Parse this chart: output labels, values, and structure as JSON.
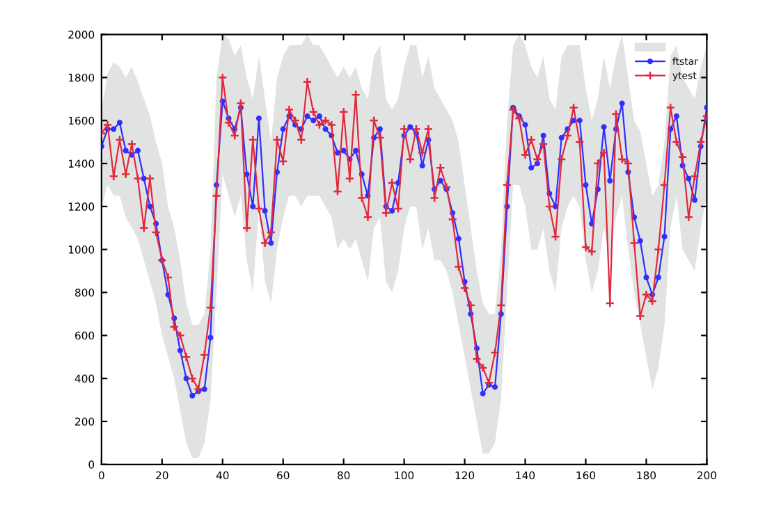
{
  "chart_data": {
    "type": "line",
    "x": [
      0,
      2,
      4,
      6,
      8,
      10,
      12,
      14,
      16,
      18,
      20,
      22,
      24,
      26,
      28,
      30,
      32,
      34,
      36,
      38,
      40,
      42,
      44,
      46,
      48,
      50,
      52,
      54,
      56,
      58,
      60,
      62,
      64,
      66,
      68,
      70,
      72,
      74,
      76,
      78,
      80,
      82,
      84,
      86,
      88,
      90,
      92,
      94,
      96,
      98,
      100,
      102,
      104,
      106,
      108,
      110,
      112,
      114,
      116,
      118,
      120,
      122,
      124,
      126,
      128,
      130,
      132,
      134,
      136,
      138,
      140,
      142,
      144,
      146,
      148,
      150,
      152,
      154,
      156,
      158,
      160,
      162,
      164,
      166,
      168,
      170,
      172,
      174,
      176,
      178,
      180,
      182,
      184,
      186,
      188,
      190,
      192,
      194,
      196,
      198,
      200
    ],
    "series": [
      {
        "name": "ftstar",
        "color": "#2f2fff",
        "marker": "circle",
        "values": [
          1480,
          1560,
          1560,
          1590,
          1460,
          1440,
          1460,
          1330,
          1200,
          1120,
          950,
          790,
          680,
          530,
          400,
          320,
          340,
          350,
          590,
          1300,
          1690,
          1610,
          1560,
          1660,
          1350,
          1200,
          1610,
          1180,
          1030,
          1360,
          1560,
          1620,
          1580,
          1560,
          1620,
          1600,
          1620,
          1560,
          1530,
          1450,
          1460,
          1420,
          1460,
          1350,
          1250,
          1520,
          1560,
          1200,
          1180,
          1310,
          1530,
          1570,
          1540,
          1390,
          1510,
          1280,
          1320,
          1280,
          1170,
          1050,
          850,
          700,
          540,
          330,
          370,
          360,
          700,
          1200,
          1660,
          1620,
          1580,
          1380,
          1400,
          1530,
          1260,
          1200,
          1520,
          1560,
          1600,
          1600,
          1300,
          1120,
          1280,
          1570,
          1320,
          1560,
          1680,
          1360,
          1150,
          1040,
          870,
          790,
          870,
          1060,
          1560,
          1620,
          1390,
          1330,
          1230,
          1480,
          1660
        ],
        "lower": [
          1200,
          1300,
          1250,
          1250,
          1150,
          1100,
          1050,
          950,
          850,
          750,
          600,
          500,
          400,
          250,
          100,
          30,
          30,
          100,
          300,
          800,
          1350,
          1250,
          1150,
          1250,
          950,
          800,
          1200,
          850,
          750,
          1000,
          1150,
          1250,
          1250,
          1200,
          1250,
          1250,
          1250,
          1200,
          1150,
          1000,
          1050,
          1000,
          1050,
          950,
          850,
          1100,
          1150,
          850,
          800,
          900,
          1100,
          1200,
          1200,
          1000,
          1100,
          950,
          950,
          900,
          800,
          650,
          500,
          350,
          200,
          50,
          50,
          100,
          300,
          800,
          1300,
          1300,
          1200,
          1000,
          1000,
          1100,
          900,
          800,
          1100,
          1200,
          1250,
          1200,
          950,
          800,
          900,
          1100,
          950,
          1150,
          1250,
          1000,
          800,
          650,
          500,
          350,
          450,
          650,
          1100,
          1250,
          1000,
          950,
          900,
          1100,
          1250
        ],
        "upper": [
          1650,
          1820,
          1870,
          1850,
          1800,
          1850,
          1780,
          1700,
          1620,
          1500,
          1400,
          1200,
          1100,
          950,
          750,
          650,
          650,
          700,
          1000,
          1800,
          2000,
          1980,
          1900,
          1950,
          1800,
          1700,
          1900,
          1700,
          1500,
          1800,
          1900,
          1950,
          1950,
          1950,
          2000,
          1950,
          1950,
          1900,
          1850,
          1800,
          1850,
          1800,
          1850,
          1750,
          1700,
          1900,
          1950,
          1700,
          1650,
          1700,
          1850,
          1950,
          1950,
          1800,
          1900,
          1750,
          1700,
          1650,
          1600,
          1500,
          1300,
          1100,
          900,
          750,
          700,
          700,
          1000,
          1600,
          1950,
          2000,
          1950,
          1850,
          1800,
          1900,
          1700,
          1650,
          1900,
          1950,
          1950,
          1950,
          1750,
          1600,
          1700,
          1900,
          1750,
          1900,
          2000,
          1800,
          1600,
          1550,
          1400,
          1250,
          1300,
          1500,
          1900,
          1950,
          1800,
          1750,
          1700,
          1850,
          1950
        ]
      },
      {
        "name": "ytest",
        "color": "#e2283c",
        "marker": "cross",
        "values": [
          1540,
          1580,
          1340,
          1510,
          1350,
          1490,
          1330,
          1100,
          1330,
          1080,
          950,
          870,
          640,
          600,
          500,
          400,
          350,
          510,
          730,
          1250,
          1800,
          1590,
          1530,
          1680,
          1100,
          1510,
          1190,
          1030,
          1080,
          1510,
          1410,
          1650,
          1600,
          1510,
          1780,
          1640,
          1580,
          1600,
          1580,
          1270,
          1640,
          1330,
          1720,
          1240,
          1150,
          1600,
          1520,
          1170,
          1310,
          1190,
          1560,
          1420,
          1560,
          1450,
          1560,
          1240,
          1380,
          1290,
          1140,
          920,
          820,
          740,
          490,
          450,
          380,
          520,
          740,
          1300,
          1650,
          1610,
          1440,
          1510,
          1420,
          1490,
          1200,
          1060,
          1420,
          1530,
          1660,
          1500,
          1010,
          990,
          1400,
          1450,
          750,
          1630,
          1420,
          1400,
          1030,
          690,
          790,
          760,
          1000,
          1300,
          1660,
          1500,
          1430,
          1150,
          1340,
          1500,
          1620
        ]
      }
    ],
    "xlim": [
      0,
      200
    ],
    "xticks": [
      0,
      20,
      40,
      60,
      80,
      100,
      120,
      140,
      160,
      180,
      200
    ],
    "ylim": [
      0,
      2000
    ],
    "yticks": [
      0,
      200,
      400,
      600,
      800,
      1000,
      1200,
      1400,
      1600,
      1800,
      2000
    ],
    "grid": false,
    "legend": "top right"
  }
}
